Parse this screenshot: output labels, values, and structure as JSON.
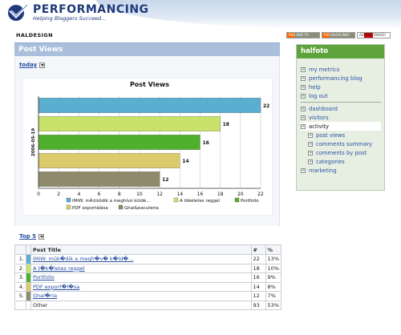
{
  "brand": {
    "title": "PERFORMANCING",
    "tagline": "Helping Bloggers Succeed..."
  },
  "site_name": "HALDESIGN",
  "badges": [
    {
      "text": "RSS ADD TO"
    },
    {
      "text": "RSS BLOGLINES"
    },
    {
      "text": "ADD MY YAHOO!"
    }
  ],
  "main": {
    "title": "Post Views",
    "period_label": "today",
    "top_label": "Top 5"
  },
  "chart_data": {
    "type": "bar",
    "orientation": "horizontal",
    "title": "Post Views",
    "ylabel": "2006-05-19",
    "xlabel": "",
    "xlim": [
      0,
      22
    ],
    "xticks": [
      0,
      2,
      4,
      6,
      8,
      10,
      12,
      14,
      16,
      18,
      20,
      22
    ],
    "categories": [
      "iMiW: mÃ±ködik a meghívó küldé...",
      "A tökéletes reggel",
      "Portfolio",
      "PDF exportálása",
      "Ghal&eacuteria"
    ],
    "values": [
      22,
      18,
      16,
      14,
      12
    ],
    "colors": [
      "#5aaed0",
      "#c9e26a",
      "#4fb02e",
      "#dccb6a",
      "#8f8a6c"
    ],
    "grid": true,
    "legend_position": "bottom"
  },
  "table": {
    "headers": {
      "title": "Post Title",
      "count": "#",
      "pct": "%"
    },
    "rows": [
      {
        "rank": "1.",
        "title": "iMiW: mŭk�dik a megh�v� k�ld�...",
        "count": "22",
        "pct": "13%",
        "color": "#5aaed0"
      },
      {
        "rank": "2.",
        "title": "A t�k�letes reggel",
        "count": "18",
        "pct": "10%",
        "color": "#c9e26a"
      },
      {
        "rank": "3.",
        "title": "Portfolio",
        "count": "16",
        "pct": "9%",
        "color": "#4fb02e"
      },
      {
        "rank": "4.",
        "title": "PDF export�l�sa",
        "count": "14",
        "pct": "8%",
        "color": "#dccb6a"
      },
      {
        "rank": "5.",
        "title": "Ghal�ria",
        "count": "12",
        "pct": "7%",
        "color": "#8f8a6c"
      }
    ],
    "other": {
      "label": "Other",
      "count": "93",
      "pct": "53%"
    }
  },
  "sidebar": {
    "user": "halfoto",
    "group1": [
      "my metrics",
      "performancing blog",
      "help",
      "log out"
    ],
    "group2_top": [
      "dashboard",
      "visitors"
    ],
    "active": "activity",
    "sub": [
      "post views",
      "comments summary",
      "comments by post",
      "categories"
    ],
    "bottom": [
      "marketing"
    ]
  }
}
